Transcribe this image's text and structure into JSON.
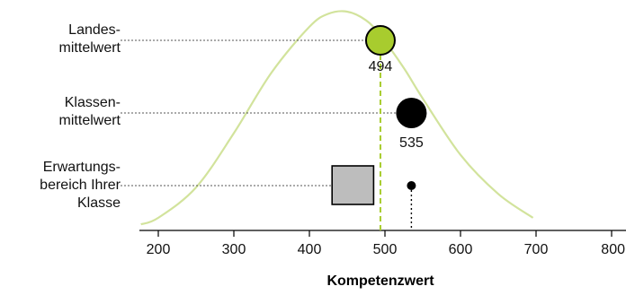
{
  "chart_data": {
    "type": "scatter",
    "xlabel": "Kompetenzwert",
    "xlim": [
      177,
      696
    ],
    "xticks": [
      200,
      300,
      400,
      500,
      600,
      700,
      800
    ],
    "row_labels": [
      {
        "lines": [
          "Landes-",
          "mittelwert"
        ]
      },
      {
        "lines": [
          "Klassen-",
          "mittelwert"
        ]
      },
      {
        "lines": [
          "Erwartungs-",
          "bereich Ihrer",
          "Klasse"
        ]
      }
    ],
    "national_mean": {
      "value": 494,
      "label": "494",
      "color": "#a8cc2e"
    },
    "class_mean": {
      "value": 535,
      "label": "535",
      "color": "#000000"
    },
    "expected_range": {
      "from": 430,
      "to": 485,
      "point": 535,
      "color": "#bdbdbd"
    },
    "distribution": {
      "color": "#d2e39c",
      "x": [
        177,
        200,
        250,
        300,
        350,
        400,
        425,
        450,
        475,
        494,
        525,
        550,
        600,
        650,
        696
      ],
      "density": [
        0.02,
        0.05,
        0.19,
        0.44,
        0.72,
        0.93,
        0.99,
        1.0,
        0.96,
        0.89,
        0.74,
        0.6,
        0.34,
        0.16,
        0.05
      ]
    }
  }
}
